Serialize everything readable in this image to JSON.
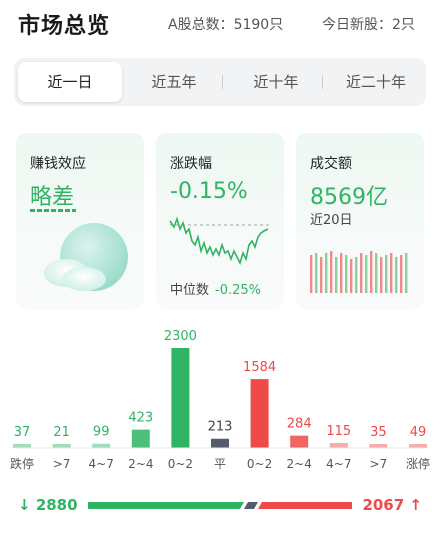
{
  "header": {
    "title": "市场总览",
    "total_stocks": "A股总数：5190只",
    "new_stocks": "今日新股：2只"
  },
  "tabs": [
    "近一日",
    "近五年",
    "近十年",
    "近二十年"
  ],
  "cards": {
    "profit_effect": {
      "title": "赚钱效应",
      "value": "略差"
    },
    "change": {
      "title": "涨跌幅",
      "value": "-0.15%",
      "median_label": "中位数",
      "median_value": "-0.25%"
    },
    "turnover": {
      "title": "成交额",
      "value": "8569亿",
      "sub": "近20日"
    }
  },
  "colors": {
    "green": "#2fb463",
    "red": "#ef4a4a",
    "gray": "#555c6b"
  },
  "chart_data": {
    "type": "bar",
    "categories": [
      "跌停",
      ">7",
      "4~7",
      "2~4",
      "0~2",
      "平",
      "0~2",
      "2~4",
      "4~7",
      ">7",
      "涨停"
    ],
    "values": [
      37,
      21,
      99,
      423,
      2300,
      213,
      1584,
      284,
      115,
      35,
      49
    ],
    "value_labels": [
      "37",
      "21",
      "99",
      "423",
      "2300",
      "213",
      "1584",
      "284",
      "115",
      "35",
      "49"
    ]
  },
  "summary": {
    "down_count": "2880",
    "up_count": "2067"
  }
}
